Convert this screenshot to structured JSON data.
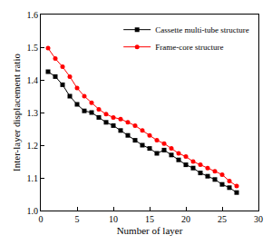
{
  "chart_data": {
    "type": "line",
    "x_label": "Number of layer",
    "y_label": "Inter-layer displacement ratio",
    "x": [
      1,
      2,
      3,
      4,
      5,
      6,
      7,
      8,
      9,
      10,
      11,
      12,
      13,
      14,
      15,
      16,
      17,
      18,
      19,
      20,
      21,
      22,
      23,
      24,
      25,
      26,
      27
    ],
    "series": [
      {
        "name": "Cassette multi-tube structure",
        "color": "#000000",
        "marker": "square",
        "line_style": "solid",
        "values": [
          1.425,
          1.41,
          1.385,
          1.35,
          1.325,
          1.305,
          1.3,
          1.285,
          1.27,
          1.26,
          1.245,
          1.23,
          1.215,
          1.2,
          1.19,
          1.175,
          1.185,
          1.17,
          1.155,
          1.14,
          1.13,
          1.115,
          1.105,
          1.095,
          1.08,
          1.07,
          1.055
        ]
      },
      {
        "name": "Frame-core structure",
        "color": "#ff0000",
        "marker": "circle",
        "line_style": "solid",
        "values": [
          1.497,
          1.465,
          1.44,
          1.41,
          1.375,
          1.35,
          1.33,
          1.31,
          1.295,
          1.285,
          1.28,
          1.27,
          1.26,
          1.245,
          1.23,
          1.215,
          1.205,
          1.19,
          1.175,
          1.165,
          1.15,
          1.14,
          1.13,
          1.12,
          1.11,
          1.09,
          1.075
        ]
      }
    ],
    "xlim": [
      0,
      30
    ],
    "xticks": [
      0,
      5,
      10,
      15,
      20,
      25,
      30
    ],
    "ylim": [
      1.0,
      1.6
    ],
    "yticks": [
      {
        "value": 1.0,
        "label": "1.0"
      },
      1.1,
      1.2,
      1.3,
      1.4,
      1.5,
      1.6
    ],
    "grid": false,
    "legend": "upper right"
  }
}
